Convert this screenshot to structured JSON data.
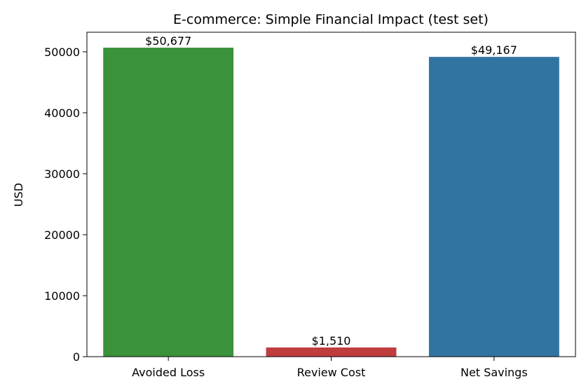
{
  "chart_data": {
    "type": "bar",
    "title": "E-commerce: Simple Financial Impact (test set)",
    "ylabel": "USD",
    "categories": [
      "Avoided Loss",
      "Review Cost",
      "Net Savings"
    ],
    "values": [
      50677,
      1510,
      49167
    ],
    "value_labels": [
      "$50,677",
      "$1,510",
      "$49,167"
    ],
    "colors": [
      "#3a923a",
      "#c03d3e",
      "#3274a1"
    ],
    "ylim": [
      0,
      53211
    ],
    "yticks": [
      0,
      10000,
      20000,
      30000,
      40000,
      50000
    ],
    "grid": false
  }
}
